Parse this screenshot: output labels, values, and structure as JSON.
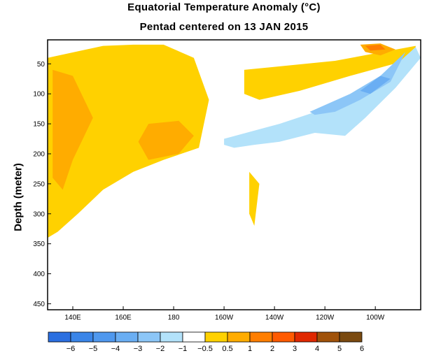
{
  "chart_data": {
    "type": "heatmap",
    "title": "Equatorial Temperature Anomaly (°C)",
    "subtitle": "Pentad centered on 13 JAN 2015",
    "xlabel": "",
    "ylabel": "Depth (meter)",
    "x_ticks": [
      "140E",
      "160E",
      "180",
      "160W",
      "140W",
      "120W",
      "100W"
    ],
    "x_tick_lon": [
      140,
      160,
      180,
      200,
      220,
      240,
      260
    ],
    "xlim_lon": [
      130,
      278
    ],
    "y_ticks": [
      50,
      100,
      150,
      200,
      250,
      300,
      350,
      400,
      450
    ],
    "ylim": [
      10,
      460
    ],
    "y_inverted": true,
    "colorbar": {
      "labels": [
        "-6",
        "-5",
        "-4",
        "-3",
        "-2",
        "-1",
        "-0.5",
        "0.5",
        "1",
        "2",
        "3",
        "4",
        "5",
        "6"
      ],
      "levels": [
        -6,
        -5,
        -4,
        -3,
        -2,
        -1,
        -0.5,
        0.5,
        1,
        2,
        3,
        4,
        5,
        6
      ],
      "colors": [
        "#2b6fe0",
        "#3a85e8",
        "#4f98ee",
        "#6aaef3",
        "#8cc6f7",
        "#b3e2fa",
        "#ffffff",
        "#ffd100",
        "#ffac00",
        "#ff7e00",
        "#ff5a00",
        "#e02800",
        "#a0520a",
        "#7a4a10"
      ]
    },
    "regions": [
      {
        "level": 0.5,
        "color": "#ffd100",
        "lon": [
          130,
          152,
          164,
          176,
          188,
          194,
          190,
          176,
          164,
          152,
          142,
          134,
          130
        ],
        "depth": [
          40,
          20,
          18,
          18,
          40,
          110,
          190,
          210,
          230,
          260,
          300,
          330,
          340
        ]
      },
      {
        "level": 1,
        "color": "#ffac00",
        "lon": [
          132,
          140,
          148,
          140,
          136,
          132
        ],
        "depth": [
          60,
          70,
          140,
          210,
          260,
          240
        ]
      },
      {
        "level": 1,
        "color": "#ffac00",
        "lon": [
          170,
          182,
          188,
          182,
          170,
          166
        ],
        "depth": [
          150,
          145,
          170,
          200,
          210,
          180
        ]
      },
      {
        "level": 0.5,
        "color": "#ffd100",
        "lon": [
          208,
          244,
          276,
          276,
          250,
          230,
          214,
          208
        ],
        "depth": [
          60,
          45,
          20,
          40,
          70,
          95,
          110,
          100
        ]
      },
      {
        "level": 1,
        "color": "#ffac00",
        "lon": [
          254,
          262,
          268,
          262,
          256
        ],
        "depth": [
          18,
          16,
          26,
          36,
          30
        ]
      },
      {
        "level": 2,
        "color": "#ff7e00",
        "lon": [
          256,
          262,
          264,
          258
        ],
        "depth": [
          20,
          18,
          26,
          28
        ]
      },
      {
        "level": -1,
        "color": "#b3e2fa",
        "lon": [
          200,
          222,
          240,
          258,
          276,
          278,
          268,
          256,
          248,
          236,
          222,
          212,
          204,
          200
        ],
        "depth": [
          175,
          150,
          125,
          90,
          22,
          40,
          90,
          140,
          170,
          165,
          180,
          185,
          190,
          185
        ]
      },
      {
        "level": -2,
        "color": "#8cc6f7",
        "lon": [
          234,
          250,
          262,
          272,
          266,
          254,
          244,
          236
        ],
        "depth": [
          130,
          100,
          70,
          30,
          80,
          110,
          130,
          135
        ]
      },
      {
        "level": -3,
        "color": "#6aaef3",
        "lon": [
          254,
          262,
          266,
          258
        ],
        "depth": [
          95,
          70,
          75,
          100
        ]
      },
      {
        "level": 0.5,
        "color": "#ffd100",
        "lon": [
          210,
          214,
          212,
          210
        ],
        "depth": [
          230,
          250,
          320,
          300
        ]
      }
    ]
  }
}
